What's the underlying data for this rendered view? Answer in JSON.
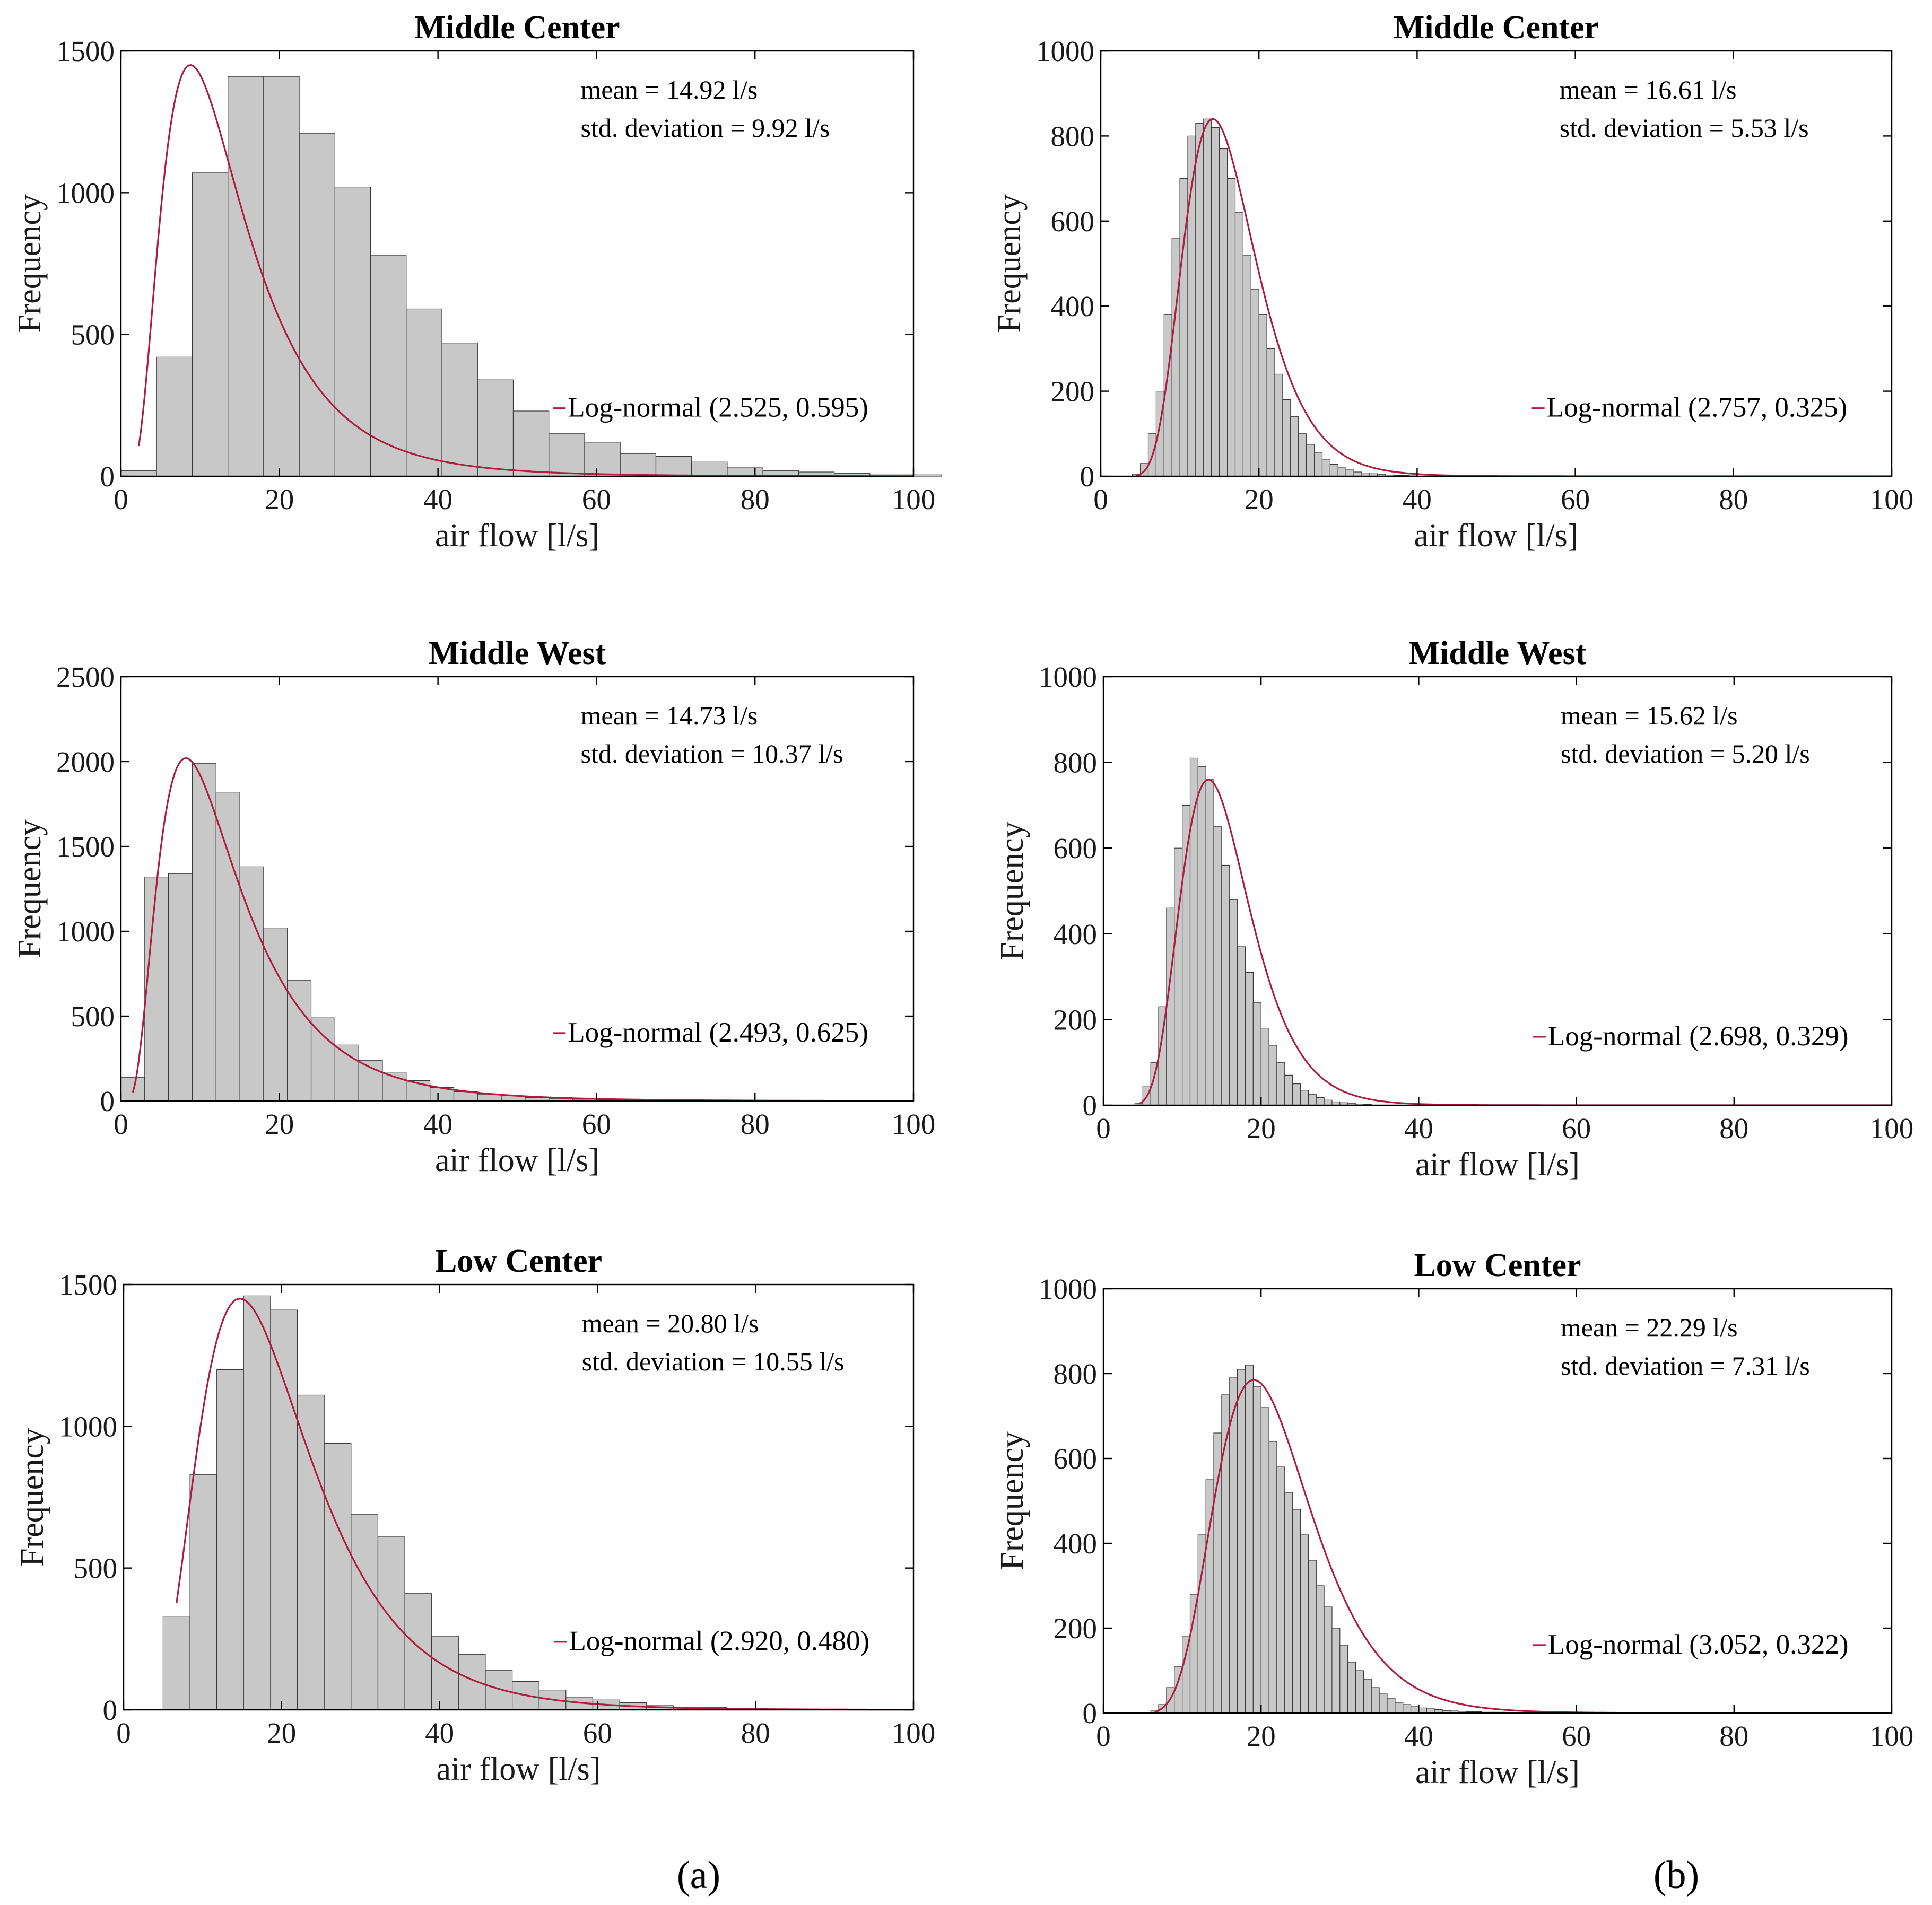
{
  "figure": {
    "captions": [
      "(a)",
      "(b)"
    ],
    "colors": {
      "bar_fill": "#c8c8c8",
      "bar_edge": "#3a3a3a",
      "fit_line": "#b01c3e"
    }
  },
  "chart_data": [
    {
      "type": "bar",
      "title": "Middle Center",
      "xlabel": "air flow [l/s]",
      "ylabel": "Frequency",
      "xlim": [
        0,
        100
      ],
      "ylim": [
        0,
        1500
      ],
      "xticks": [
        "0",
        "20",
        "40",
        "60",
        "80",
        "100"
      ],
      "yticks": [
        "0",
        "500",
        "1000",
        "1500"
      ],
      "stats": [
        "mean = 14.92 l/s",
        "std. deviation = 9.92 l/s"
      ],
      "legend": "Log-normal (2.525, 0.595)",
      "fit": {
        "dist": "lognormal",
        "mu": 2.525,
        "sigma": 0.595,
        "peak": 1450
      },
      "bin_start": 0,
      "bin_width": 4.5,
      "values": [
        20,
        420,
        1070,
        1410,
        1410,
        1210,
        1020,
        780,
        590,
        470,
        340,
        230,
        150,
        120,
        80,
        70,
        50,
        30,
        20,
        15,
        10,
        5,
        5,
        3
      ]
    },
    {
      "type": "bar",
      "title": "Middle Center",
      "xlabel": "air flow [l/s]",
      "ylabel": "Frequency",
      "xlim": [
        0,
        100
      ],
      "ylim": [
        0,
        1000
      ],
      "xticks": [
        "0",
        "20",
        "40",
        "60",
        "80",
        "100"
      ],
      "yticks": [
        "0",
        "200",
        "400",
        "600",
        "800",
        "1000"
      ],
      "stats": [
        "mean = 16.61 l/s",
        "std. deviation = 5.53 l/s"
      ],
      "legend": "Log-normal (2.757, 0.325)",
      "fit": {
        "dist": "lognormal",
        "mu": 2.757,
        "sigma": 0.325,
        "peak": 840
      },
      "bin_start": 4,
      "bin_width": 1,
      "values": [
        5,
        30,
        100,
        200,
        380,
        560,
        700,
        800,
        830,
        840,
        820,
        770,
        700,
        620,
        520,
        440,
        380,
        300,
        240,
        180,
        140,
        100,
        75,
        55,
        40,
        28,
        20,
        15,
        10,
        8,
        6,
        4,
        3,
        2,
        2,
        1
      ]
    },
    {
      "type": "bar",
      "title": "Middle West",
      "xlabel": "air flow [l/s]",
      "ylabel": "Frequency",
      "xlim": [
        0,
        100
      ],
      "ylim": [
        0,
        2500
      ],
      "xticks": [
        "0",
        "20",
        "40",
        "60",
        "80",
        "100"
      ],
      "yticks": [
        "0",
        "500",
        "1000",
        "1500",
        "2000",
        "2500"
      ],
      "stats": [
        "mean = 14.73 l/s",
        "std. deviation = 10.37 l/s"
      ],
      "legend": "Log-normal (2.493, 0.625)",
      "fit": {
        "dist": "lognormal",
        "mu": 2.493,
        "sigma": 0.625,
        "peak": 2020
      },
      "bin_start": 0,
      "bin_width": 3,
      "values": [
        140,
        1320,
        1340,
        1990,
        1820,
        1380,
        1020,
        710,
        490,
        330,
        240,
        170,
        120,
        80,
        55,
        40,
        30,
        20,
        15,
        10,
        8,
        5,
        4,
        3,
        3,
        2
      ]
    },
    {
      "type": "bar",
      "title": "Middle West",
      "xlabel": "air flow [l/s]",
      "ylabel": "Frequency",
      "xlim": [
        0,
        100
      ],
      "ylim": [
        0,
        1000
      ],
      "xticks": [
        "0",
        "20",
        "40",
        "60",
        "80",
        "100"
      ],
      "yticks": [
        "0",
        "200",
        "400",
        "600",
        "800",
        "1000"
      ],
      "stats": [
        "mean = 15.62 l/s",
        "std. deviation = 5.20 l/s"
      ],
      "legend": "Log-normal (2.698, 0.329)",
      "fit": {
        "dist": "lognormal",
        "mu": 2.698,
        "sigma": 0.329,
        "peak": 760
      },
      "bin_start": 4,
      "bin_width": 1,
      "values": [
        5,
        45,
        100,
        230,
        460,
        600,
        700,
        810,
        790,
        760,
        650,
        560,
        480,
        370,
        310,
        240,
        180,
        140,
        100,
        70,
        50,
        35,
        25,
        18,
        12,
        8,
        6,
        4,
        3,
        2
      ]
    },
    {
      "type": "bar",
      "title": "Low Center",
      "xlabel": "air flow [l/s]",
      "ylabel": "Frequency",
      "xlim": [
        0,
        100
      ],
      "ylim": [
        0,
        1500
      ],
      "xticks": [
        "0",
        "20",
        "40",
        "60",
        "80",
        "100"
      ],
      "yticks": [
        "0",
        "500",
        "1000",
        "1500"
      ],
      "stats": [
        "mean = 20.80 l/s",
        "std. deviation = 10.55 l/s"
      ],
      "legend": "Log-normal (2.920, 0.480)",
      "fit": {
        "dist": "lognormal",
        "mu": 2.92,
        "sigma": 0.48,
        "peak": 1450
      },
      "bin_start": 5,
      "bin_width": 3.4,
      "values": [
        330,
        830,
        1200,
        1460,
        1410,
        1110,
        940,
        690,
        610,
        410,
        260,
        195,
        140,
        100,
        70,
        45,
        35,
        25,
        15,
        10,
        8,
        5
      ]
    },
    {
      "type": "bar",
      "title": "Low Center",
      "xlabel": "air flow [l/s]",
      "ylabel": "Frequency",
      "xlim": [
        0,
        100
      ],
      "ylim": [
        0,
        1000
      ],
      "xticks": [
        "0",
        "20",
        "40",
        "60",
        "80",
        "100"
      ],
      "yticks": [
        "0",
        "200",
        "400",
        "600",
        "800",
        "1000"
      ],
      "stats": [
        "mean = 22.29 l/s",
        "std. deviation = 7.31 l/s"
      ],
      "legend": "Log-normal (3.052, 0.322)",
      "fit": {
        "dist": "lognormal",
        "mu": 3.052,
        "sigma": 0.322,
        "peak": 785
      },
      "bin_start": 6,
      "bin_width": 1,
      "values": [
        5,
        20,
        60,
        110,
        180,
        280,
        420,
        550,
        660,
        750,
        790,
        810,
        820,
        770,
        720,
        640,
        580,
        520,
        480,
        420,
        360,
        300,
        250,
        200,
        160,
        120,
        100,
        80,
        60,
        45,
        35,
        25,
        20,
        15,
        12,
        10,
        8,
        6,
        5,
        4,
        3,
        3,
        2,
        2,
        2
      ]
    }
  ]
}
